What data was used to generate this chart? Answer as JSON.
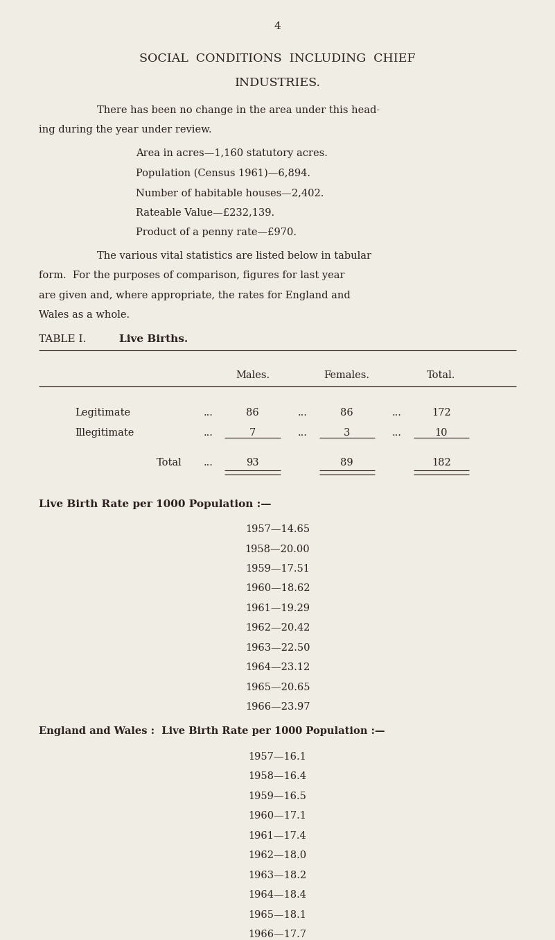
{
  "bg_color": "#f0ede4",
  "text_color": "#2c1f1f",
  "page_number": "4",
  "title_line1": "SOCIAL  CONDITIONS  INCLUDING  CHIEF",
  "title_line2": "INDUSTRIES.",
  "para1_line1": "There has been no change in the area under this head-",
  "para1_line2": "ing during the year under review.",
  "bullet1": "Area in acres—1,160 statutory acres.",
  "bullet2": "Population (Census 1961)—6,894.",
  "bullet3": "Number of habitable houses—2,402.",
  "bullet4": "Rateable Value—£232,139.",
  "bullet5": "Product of a penny rate—£970.",
  "para2_line1": "The various vital statistics are listed below in tabular",
  "para2_line2": "form.  For the purposes of comparison, figures for last year",
  "para2_line3": "are given and, where appropriate, the rates for England and",
  "para2_line4": "Wales as a whole.",
  "table_label": "TABLE I.",
  "table_title": "Live Births.",
  "table_col_headers": [
    "Males.",
    "Females.",
    "Total."
  ],
  "table_rows": [
    [
      "Legitimate",
      "...",
      "86",
      "...",
      "86",
      "...",
      "172"
    ],
    [
      "Illegitimate",
      "...",
      "7",
      "...",
      "3",
      "...",
      "10"
    ]
  ],
  "table_total_row": [
    "Total",
    "...",
    "93",
    "89",
    "182"
  ],
  "lbr_header": "Live Birth Rate per 1000 Population :—",
  "lbr_data": [
    "1957—14.65",
    "1958—20.00",
    "1959—17.51",
    "1960—18.62",
    "1961—19.29",
    "1962—20.42",
    "1963—22.50",
    "1964—23.12",
    "1965—20.65",
    "1966—23.97"
  ],
  "ew_header": "England and Wales :  Live Birth Rate per 1000 Population :—",
  "ew_data": [
    "1957—16.1",
    "1958—16.4",
    "1959—16.5",
    "1960—17.1",
    "1961—17.4",
    "1962—18.0",
    "1963—18.2",
    "1964—18.4",
    "1965—18.1",
    "1966—17.7"
  ]
}
